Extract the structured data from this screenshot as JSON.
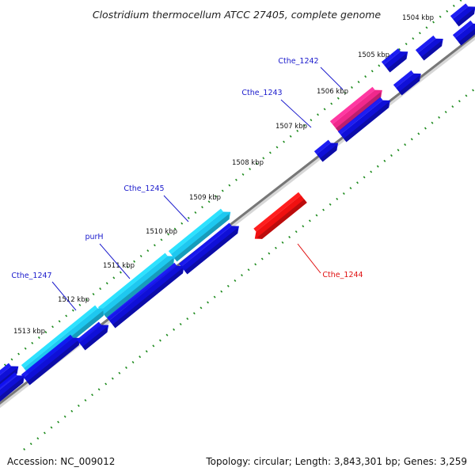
{
  "title": "Clostridium thermocellum ATCC 27405, complete genome",
  "accession": "Accession: NC_009012",
  "summary": "Topology: circular; Length: 3,843,301 bp; Genes: 3,259",
  "ticks": [
    "1504 kbp",
    "1505 kbp",
    "1506 kbp",
    "1507 kbp",
    "1508 kbp",
    "1509 kbp",
    "1510 kbp",
    "1511 kbp",
    "1512 kbp",
    "1513 kbp"
  ],
  "gene_labels": [
    "Cthe_1242",
    "Cthe_1243",
    "Cthe_1244",
    "Cthe_1245",
    "purH",
    "Cthe_1247"
  ],
  "colors": {
    "default_gene": "#0f0fd8",
    "Cthe_1242": "#f0288c",
    "Cthe_1244": "#f01010",
    "Cthe_1245": "#1ec8f0",
    "purH": "#1ec8f0",
    "Cthe_1247": "#1ec8f0",
    "label_default": "#1a1acc",
    "label_Cthe_1244": "#e01010",
    "backbone": "#777777",
    "dots": "#1c8a1c"
  }
}
